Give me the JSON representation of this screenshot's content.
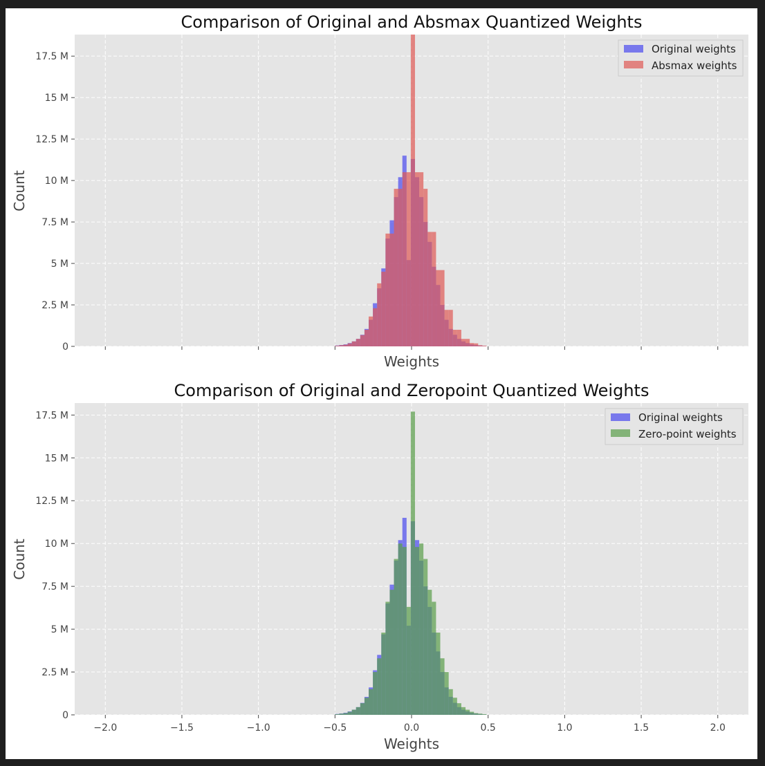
{
  "chart_data": [
    {
      "type": "bar",
      "title": "Comparison of Original and Absmax Quantized Weights",
      "xlabel": "Weights",
      "ylabel": "Count",
      "xlim": [
        -2.2,
        2.2
      ],
      "ylim": [
        0,
        18.8
      ],
      "y_unit": "millions",
      "grid": true,
      "legend_position": "top-right",
      "show_x_tick_labels": false,
      "x_ticks": [
        -2.0,
        -1.5,
        -1.0,
        -0.5,
        0.0,
        0.5,
        1.0,
        1.5,
        2.0
      ],
      "x_tick_labels": [
        "−2.0",
        "−1.5",
        "−1.0",
        "−0.5",
        "0.0",
        "0.5",
        "1.0",
        "1.5",
        "2.0"
      ],
      "y_ticks": [
        0,
        2.5,
        5,
        7.5,
        10,
        12.5,
        15,
        17.5
      ],
      "y_tick_labels": [
        "0",
        "2.5 M",
        "5 M",
        "7.5 M",
        "10 M",
        "12.5 M",
        "15 M",
        "17.5 M"
      ],
      "bin_width": 0.0275,
      "series": [
        {
          "name": "Original weights",
          "color": "#4a4af0",
          "x": [
            -0.5,
            -0.4725,
            -0.445,
            -0.4175,
            -0.39,
            -0.3625,
            -0.335,
            -0.3075,
            -0.28,
            -0.2525,
            -0.225,
            -0.1975,
            -0.17,
            -0.1425,
            -0.115,
            -0.0875,
            -0.06,
            -0.0325,
            -0.005,
            0.0225,
            0.05,
            0.0775,
            0.105,
            0.1325,
            0.16,
            0.1875,
            0.215,
            0.2425,
            0.27,
            0.2975,
            0.325,
            0.3525,
            0.38,
            0.4075,
            0.435,
            0.4625
          ],
          "values": [
            0.05,
            0.08,
            0.12,
            0.2,
            0.3,
            0.45,
            0.7,
            1.05,
            1.6,
            2.6,
            3.5,
            4.7,
            6.5,
            7.6,
            9.0,
            10.2,
            11.5,
            5.2,
            11.3,
            10.2,
            9.0,
            7.5,
            6.3,
            4.8,
            3.7,
            2.5,
            1.6,
            1.05,
            0.7,
            0.45,
            0.3,
            0.2,
            0.12,
            0.08,
            0.05,
            0.02
          ]
        },
        {
          "name": "Absmax weights",
          "color": "#e05a55",
          "x": [
            -0.5,
            -0.4725,
            -0.445,
            -0.4175,
            -0.39,
            -0.3625,
            -0.335,
            -0.3075,
            -0.28,
            -0.2525,
            -0.225,
            -0.1975,
            -0.17,
            -0.1425,
            -0.115,
            -0.0875,
            -0.06,
            -0.0325,
            -0.005,
            0.0225,
            0.05,
            0.0775,
            0.105,
            0.1325,
            0.16,
            0.1875,
            0.215,
            0.2425,
            0.27,
            0.2975,
            0.325,
            0.3525,
            0.38,
            0.4075,
            0.435,
            0.4625
          ],
          "values": [
            0.04,
            0.07,
            0.1,
            0.18,
            0.3,
            0.45,
            0.68,
            1.0,
            1.8,
            2.3,
            3.8,
            4.5,
            6.8,
            6.8,
            9.5,
            9.5,
            10.5,
            10.5,
            18.8,
            10.5,
            10.5,
            9.5,
            6.9,
            6.9,
            4.6,
            4.6,
            2.2,
            2.2,
            1.0,
            1.0,
            0.45,
            0.45,
            0.2,
            0.18,
            0.07,
            0.04
          ]
        }
      ]
    },
    {
      "type": "bar",
      "title": "Comparison of Original and Zeropoint Quantized Weights",
      "xlabel": "Weights",
      "ylabel": "Count",
      "xlim": [
        -2.2,
        2.2
      ],
      "ylim": [
        0,
        18.2
      ],
      "y_unit": "millions",
      "grid": true,
      "legend_position": "top-right",
      "show_x_tick_labels": true,
      "x_ticks": [
        -2.0,
        -1.5,
        -1.0,
        -0.5,
        0.0,
        0.5,
        1.0,
        1.5,
        2.0
      ],
      "x_tick_labels": [
        "−2.0",
        "−1.5",
        "−1.0",
        "−0.5",
        "0.0",
        "0.5",
        "1.0",
        "1.5",
        "2.0"
      ],
      "y_ticks": [
        0,
        2.5,
        5,
        7.5,
        10,
        12.5,
        15,
        17.5
      ],
      "y_tick_labels": [
        "0",
        "2.5 M",
        "5 M",
        "7.5 M",
        "10 M",
        "12.5 M",
        "15 M",
        "17.5 M"
      ],
      "bin_width": 0.0275,
      "series": [
        {
          "name": "Original weights",
          "color": "#4a4af0",
          "x": [
            -0.5,
            -0.4725,
            -0.445,
            -0.4175,
            -0.39,
            -0.3625,
            -0.335,
            -0.3075,
            -0.28,
            -0.2525,
            -0.225,
            -0.1975,
            -0.17,
            -0.1425,
            -0.115,
            -0.0875,
            -0.06,
            -0.0325,
            -0.005,
            0.0225,
            0.05,
            0.0775,
            0.105,
            0.1325,
            0.16,
            0.1875,
            0.215,
            0.2425,
            0.27,
            0.2975,
            0.325,
            0.3525,
            0.38,
            0.4075,
            0.435,
            0.4625
          ],
          "values": [
            0.05,
            0.08,
            0.12,
            0.2,
            0.3,
            0.45,
            0.7,
            1.05,
            1.6,
            2.6,
            3.5,
            4.7,
            6.5,
            7.6,
            9.0,
            10.2,
            11.5,
            5.2,
            11.3,
            10.2,
            9.0,
            7.5,
            6.3,
            4.8,
            3.7,
            2.5,
            1.6,
            1.05,
            0.7,
            0.45,
            0.3,
            0.2,
            0.12,
            0.08,
            0.05,
            0.02
          ]
        },
        {
          "name": "Zero-point weights",
          "color": "#5a9e4a",
          "x": [
            -0.5,
            -0.4725,
            -0.445,
            -0.4175,
            -0.39,
            -0.3625,
            -0.335,
            -0.3075,
            -0.28,
            -0.2525,
            -0.225,
            -0.1975,
            -0.17,
            -0.1425,
            -0.115,
            -0.0875,
            -0.06,
            -0.0325,
            -0.005,
            0.0225,
            0.05,
            0.0775,
            0.105,
            0.1325,
            0.16,
            0.1875,
            0.215,
            0.2425,
            0.27,
            0.2975,
            0.325,
            0.3525,
            0.38,
            0.4075,
            0.435,
            0.4625
          ],
          "values": [
            0.04,
            0.07,
            0.1,
            0.18,
            0.3,
            0.45,
            0.68,
            1.0,
            1.5,
            2.5,
            3.3,
            4.8,
            6.6,
            7.3,
            9.1,
            10.0,
            9.8,
            6.3,
            17.7,
            9.8,
            10.0,
            9.1,
            7.3,
            6.6,
            4.8,
            3.3,
            2.5,
            1.5,
            1.0,
            0.68,
            0.45,
            0.3,
            0.18,
            0.1,
            0.07,
            0.04
          ]
        }
      ]
    }
  ]
}
